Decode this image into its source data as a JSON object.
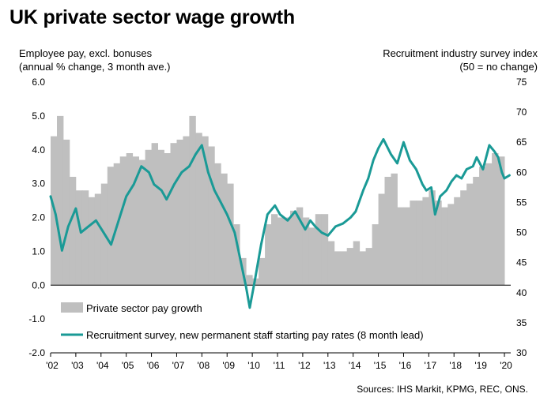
{
  "chart_data": {
    "type": "bar+line",
    "title": "UK private sector wage growth",
    "left_axis": {
      "label_line1": "Employee pay, excl. bonuses",
      "label_line2": "(annual % change, 3 month ave.)",
      "ylim": [
        -2.0,
        6.0
      ],
      "ticks": [
        "6.0",
        "5.0",
        "4.0",
        "3.0",
        "2.0",
        "1.0",
        "0.0",
        "-1.0",
        "-2.0"
      ]
    },
    "right_axis": {
      "label_line1": "Recruitment industry survey index",
      "label_line2": "(50 = no change)",
      "ylim": [
        30,
        75
      ],
      "ticks": [
        "75",
        "70",
        "65",
        "60",
        "55",
        "50",
        "45",
        "40",
        "35",
        "30"
      ]
    },
    "x_ticks": [
      "'02",
      "'03",
      "'04",
      "'05",
      "'06",
      "'07",
      "'08",
      "'09",
      "'10",
      "'11",
      "'12",
      "'13",
      "'14",
      "'15",
      "'16",
      "'17",
      "'18",
      "'19",
      "'20"
    ],
    "x_start_year": 2002,
    "x_end_year": 2020,
    "series": [
      {
        "name": "Private sector pay growth",
        "kind": "bar",
        "axis": "left",
        "color": "#bfbfbf",
        "points": [
          [
            2002.0,
            4.4
          ],
          [
            2002.25,
            5.0
          ],
          [
            2002.5,
            4.3
          ],
          [
            2002.75,
            3.2
          ],
          [
            2003.0,
            2.8
          ],
          [
            2003.25,
            2.8
          ],
          [
            2003.5,
            2.6
          ],
          [
            2003.75,
            2.7
          ],
          [
            2004.0,
            3.0
          ],
          [
            2004.25,
            3.5
          ],
          [
            2004.5,
            3.6
          ],
          [
            2004.75,
            3.8
          ],
          [
            2005.0,
            3.9
          ],
          [
            2005.25,
            3.8
          ],
          [
            2005.5,
            3.7
          ],
          [
            2005.75,
            4.0
          ],
          [
            2006.0,
            4.2
          ],
          [
            2006.25,
            4.0
          ],
          [
            2006.5,
            3.9
          ],
          [
            2006.75,
            4.2
          ],
          [
            2007.0,
            4.3
          ],
          [
            2007.25,
            4.4
          ],
          [
            2007.5,
            5.0
          ],
          [
            2007.75,
            4.5
          ],
          [
            2008.0,
            4.4
          ],
          [
            2008.25,
            4.1
          ],
          [
            2008.5,
            3.6
          ],
          [
            2008.75,
            3.3
          ],
          [
            2009.0,
            3.0
          ],
          [
            2009.25,
            1.8
          ],
          [
            2009.5,
            0.8
          ],
          [
            2009.75,
            0.3
          ],
          [
            2010.0,
            0.2
          ],
          [
            2010.25,
            0.8
          ],
          [
            2010.5,
            1.8
          ],
          [
            2010.75,
            2.1
          ],
          [
            2011.0,
            2.0
          ],
          [
            2011.25,
            2.0
          ],
          [
            2011.5,
            2.2
          ],
          [
            2011.75,
            2.3
          ],
          [
            2012.0,
            2.0
          ],
          [
            2012.25,
            1.7
          ],
          [
            2012.5,
            2.1
          ],
          [
            2012.75,
            2.1
          ],
          [
            2013.0,
            1.3
          ],
          [
            2013.25,
            1.0
          ],
          [
            2013.5,
            1.0
          ],
          [
            2013.75,
            1.1
          ],
          [
            2014.0,
            1.3
          ],
          [
            2014.25,
            1.0
          ],
          [
            2014.5,
            1.1
          ],
          [
            2014.75,
            1.8
          ],
          [
            2015.0,
            2.7
          ],
          [
            2015.25,
            3.2
          ],
          [
            2015.5,
            3.3
          ],
          [
            2015.75,
            2.3
          ],
          [
            2016.0,
            2.3
          ],
          [
            2016.25,
            2.5
          ],
          [
            2016.5,
            2.5
          ],
          [
            2016.75,
            2.6
          ],
          [
            2017.0,
            2.8
          ],
          [
            2017.25,
            2.5
          ],
          [
            2017.5,
            2.3
          ],
          [
            2017.75,
            2.4
          ],
          [
            2018.0,
            2.6
          ],
          [
            2018.25,
            2.8
          ],
          [
            2018.5,
            3.0
          ],
          [
            2018.75,
            3.2
          ],
          [
            2019.0,
            3.5
          ],
          [
            2019.25,
            3.6
          ],
          [
            2019.5,
            3.9
          ],
          [
            2019.75,
            3.8
          ]
        ]
      },
      {
        "name": "Recruitment survey, new permanent staff starting pay rates (8 month lead)",
        "kind": "line",
        "axis": "right",
        "color": "#1a9a96",
        "points": [
          [
            2002.0,
            56
          ],
          [
            2002.2,
            53
          ],
          [
            2002.45,
            47
          ],
          [
            2002.7,
            51
          ],
          [
            2003.0,
            54
          ],
          [
            2003.2,
            50
          ],
          [
            2003.5,
            51
          ],
          [
            2003.8,
            52
          ],
          [
            2004.1,
            50
          ],
          [
            2004.4,
            48
          ],
          [
            2004.7,
            52
          ],
          [
            2005.0,
            56
          ],
          [
            2005.3,
            58
          ],
          [
            2005.6,
            61
          ],
          [
            2005.9,
            60
          ],
          [
            2006.1,
            58
          ],
          [
            2006.4,
            57
          ],
          [
            2006.6,
            55.5
          ],
          [
            2006.9,
            58
          ],
          [
            2007.2,
            60
          ],
          [
            2007.5,
            61
          ],
          [
            2007.75,
            63
          ],
          [
            2008.0,
            64.5
          ],
          [
            2008.25,
            60
          ],
          [
            2008.5,
            57
          ],
          [
            2008.75,
            55
          ],
          [
            2009.0,
            53
          ],
          [
            2009.3,
            50
          ],
          [
            2009.5,
            46
          ],
          [
            2009.75,
            41
          ],
          [
            2009.9,
            37.5
          ],
          [
            2010.1,
            42
          ],
          [
            2010.35,
            48
          ],
          [
            2010.6,
            53
          ],
          [
            2010.9,
            54.5
          ],
          [
            2011.1,
            53
          ],
          [
            2011.4,
            52
          ],
          [
            2011.7,
            53.5
          ],
          [
            2011.9,
            52
          ],
          [
            2012.1,
            50.5
          ],
          [
            2012.3,
            52
          ],
          [
            2012.5,
            51
          ],
          [
            2012.75,
            50
          ],
          [
            2013.0,
            49.5
          ],
          [
            2013.3,
            51
          ],
          [
            2013.6,
            51.5
          ],
          [
            2013.9,
            52.5
          ],
          [
            2014.1,
            53.5
          ],
          [
            2014.4,
            57
          ],
          [
            2014.6,
            59
          ],
          [
            2014.8,
            62
          ],
          [
            2015.0,
            64
          ],
          [
            2015.2,
            65.5
          ],
          [
            2015.5,
            63
          ],
          [
            2015.75,
            61.5
          ],
          [
            2016.0,
            65
          ],
          [
            2016.25,
            62
          ],
          [
            2016.5,
            60.5
          ],
          [
            2016.75,
            58
          ],
          [
            2016.9,
            57
          ],
          [
            2017.1,
            57.5
          ],
          [
            2017.25,
            53
          ],
          [
            2017.45,
            56
          ],
          [
            2017.7,
            57
          ],
          [
            2017.9,
            58.5
          ],
          [
            2018.1,
            59.5
          ],
          [
            2018.3,
            59
          ],
          [
            2018.5,
            60.5
          ],
          [
            2018.75,
            61
          ],
          [
            2018.9,
            62.5
          ],
          [
            2019.15,
            60.5
          ],
          [
            2019.4,
            64.5
          ],
          [
            2019.6,
            63.5
          ],
          [
            2019.75,
            62.5
          ],
          [
            2019.9,
            60
          ],
          [
            2020.0,
            59
          ],
          [
            2020.2,
            59.5
          ]
        ]
      }
    ],
    "source": "Sources: IHS Markit, KPMG, REC, ONS."
  }
}
